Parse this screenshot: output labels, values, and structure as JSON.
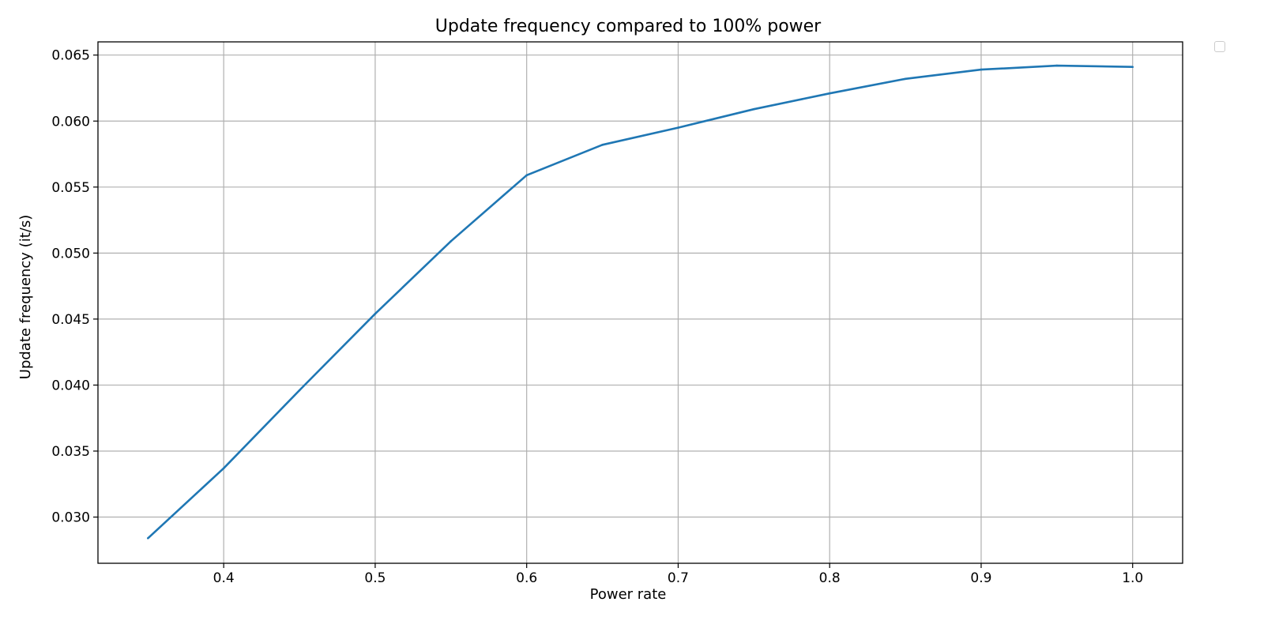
{
  "chart_data": {
    "type": "line",
    "title": "Update frequency compared to 100% power",
    "xlabel": "Power rate",
    "ylabel": "Update frequency (it/s)",
    "xlim": [
      0.317,
      1.033
    ],
    "ylim": [
      0.0265,
      0.066
    ],
    "xticks": [
      0.4,
      0.5,
      0.6,
      0.7,
      0.8,
      0.9,
      1.0
    ],
    "xtick_labels": [
      "0.4",
      "0.5",
      "0.6",
      "0.7",
      "0.8",
      "0.9",
      "1.0"
    ],
    "yticks": [
      0.03,
      0.035,
      0.04,
      0.045,
      0.05,
      0.055,
      0.06,
      0.065
    ],
    "ytick_labels": [
      "0.030",
      "0.035",
      "0.040",
      "0.045",
      "0.050",
      "0.055",
      "0.060",
      "0.065"
    ],
    "grid": true,
    "legend": "upper-right, outside, empty",
    "series": [
      {
        "color": "#1f77b4",
        "x": [
          0.35,
          0.4,
          0.45,
          0.5,
          0.55,
          0.6,
          0.65,
          0.7,
          0.75,
          0.8,
          0.85,
          0.9,
          0.95,
          1.0
        ],
        "y": [
          0.0284,
          0.0337,
          0.0396,
          0.0454,
          0.0509,
          0.0559,
          0.0582,
          0.0595,
          0.0609,
          0.0621,
          0.0632,
          0.0639,
          0.0642,
          0.0641
        ]
      }
    ]
  }
}
